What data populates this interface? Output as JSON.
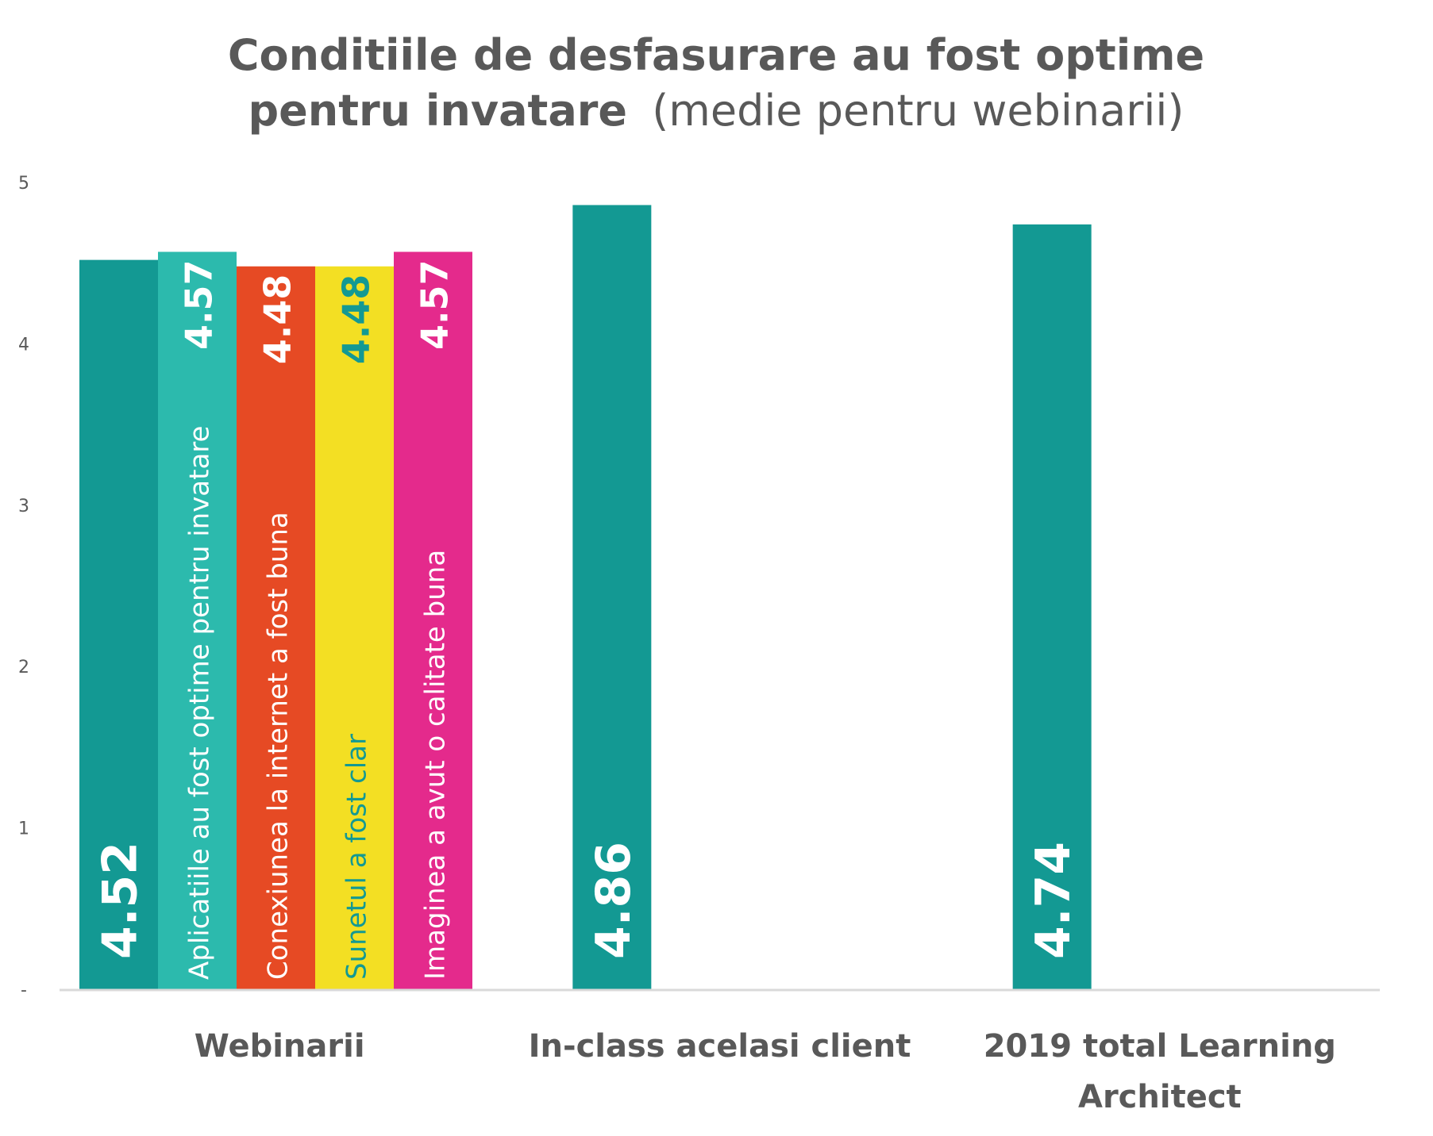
{
  "chart_data": {
    "type": "bar",
    "title_bold": "Conditiile de desfasurare au fost optime",
    "title_bold_line2": "pentru invatare",
    "title_light": "(medie pentru webinarii)",
    "ylim": [
      0,
      5
    ],
    "ytick_labels": [
      "-",
      "1",
      "2",
      "3",
      "4",
      "5"
    ],
    "grid": false,
    "groups": [
      {
        "category": "Webinarii",
        "category_lines": [
          "Webinarii"
        ],
        "bars": [
          {
            "name": "",
            "value": 4.52,
            "value_label": "4.52",
            "color": "#139993",
            "value_color": "#ffffff",
            "label_color": "#ffffff"
          },
          {
            "name": "Aplicatiile au fost optime pentru invatare",
            "value": 4.57,
            "value_label": "4.57",
            "color": "#2cbaad",
            "value_color": "#ffffff",
            "label_color": "#ffffff"
          },
          {
            "name": "Conexiunea la internet a fost buna",
            "value": 4.48,
            "value_label": "4.48",
            "color": "#e64a24",
            "value_color": "#ffffff",
            "label_color": "#ffffff"
          },
          {
            "name": "Sunetul a fost clar",
            "value": 4.48,
            "value_label": "4.48",
            "color": "#f3df23",
            "value_color": "#139993",
            "label_color": "#139993"
          },
          {
            "name": "Imaginea a avut o calitate buna",
            "value": 4.57,
            "value_label": "4.57",
            "color": "#e42a8c",
            "value_color": "#ffffff",
            "label_color": "#ffffff"
          }
        ]
      },
      {
        "category": "In-class acelasi client",
        "category_lines": [
          "In-class acelasi client"
        ],
        "bars": [
          {
            "name": "",
            "value": 4.86,
            "value_label": "4.86",
            "color": "#139993",
            "value_color": "#ffffff",
            "label_color": "#ffffff"
          }
        ]
      },
      {
        "category": "2019 total Learning Architect",
        "category_lines": [
          "2019 total Learning",
          "Architect"
        ],
        "bars": [
          {
            "name": "",
            "value": 4.74,
            "value_label": "4.74",
            "color": "#139993",
            "value_color": "#ffffff",
            "label_color": "#ffffff"
          }
        ]
      }
    ],
    "colors": {
      "title": "#595959",
      "axis_text": "#595959",
      "axis_line": "#d9d9d9"
    }
  }
}
